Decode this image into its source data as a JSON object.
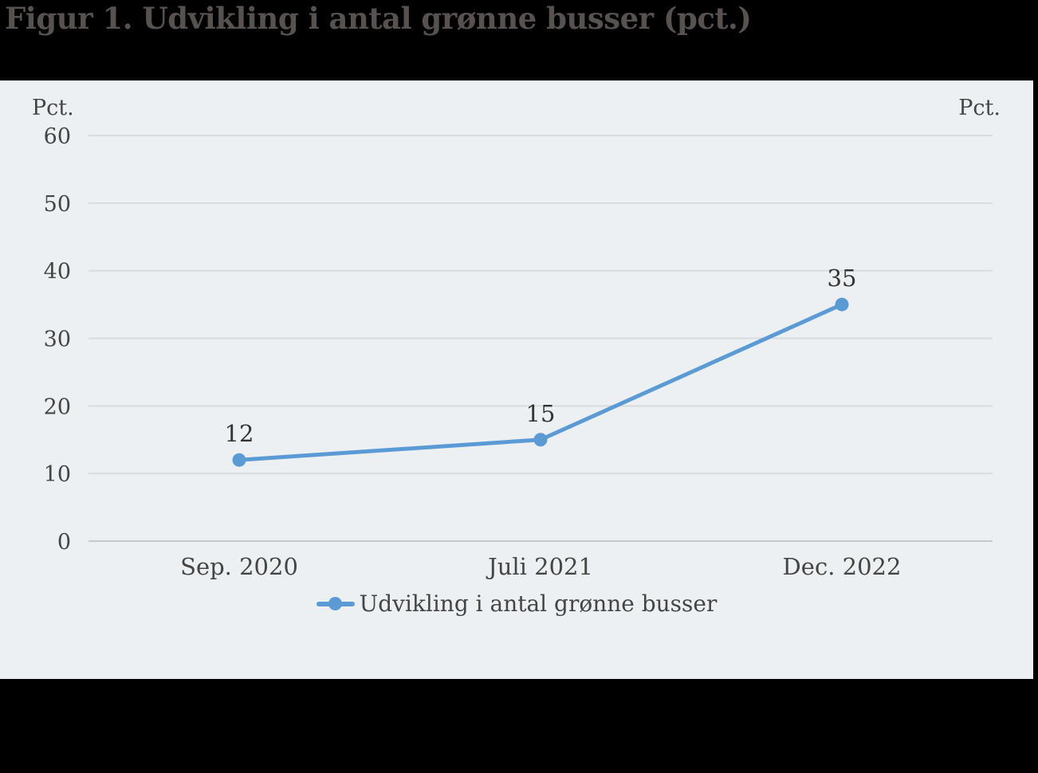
{
  "figure": {
    "title": "Figur 1. Udvikling i antal grønne busser (pct.)",
    "y_unit_left": "Pct.",
    "y_unit_right": "Pct.",
    "legend_label": "Udvikling i antal grønne busser"
  },
  "colors": {
    "background": "#000000",
    "panel": "#edf0f2",
    "gridline": "#d9dcde",
    "axis_line": "#c6c9cc",
    "series": "#5b9bd5",
    "tick_text": "#454545",
    "data_label": "#333333",
    "title_text": "#575150"
  },
  "chart_data": {
    "type": "line",
    "title": "Figur 1. Udvikling i antal grønne busser (pct.)",
    "categories": [
      "Sep. 2020",
      "Juli 2021",
      "Dec. 2022"
    ],
    "series": [
      {
        "name": "Udvikling i antal grønne busser",
        "values": [
          12,
          15,
          35
        ]
      }
    ],
    "data_labels": [
      "12",
      "15",
      "35"
    ],
    "xlabel": "",
    "ylabel": "Pct.",
    "ylim": [
      0,
      60
    ],
    "yticks": [
      0,
      10,
      20,
      30,
      40,
      50,
      60
    ],
    "grid": "horizontal",
    "legend_position": "bottom",
    "marker": "circle"
  }
}
